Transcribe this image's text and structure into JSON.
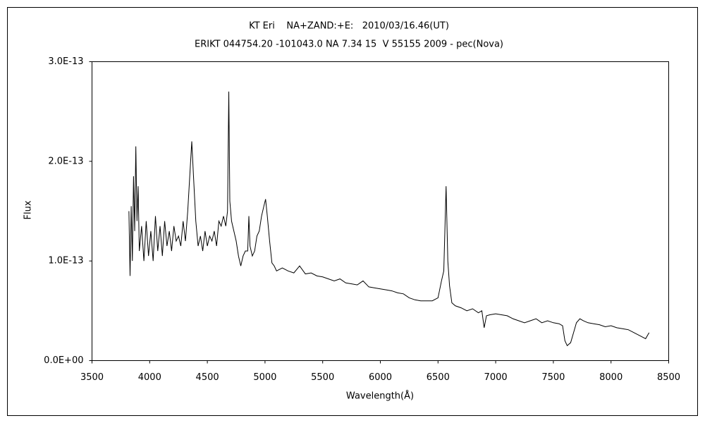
{
  "chart_data": {
    "type": "line",
    "title": "KT Eri    NA+ZAND:+E:   2010/03/16.46(UT)",
    "subtitle": "ERIKT 044754.20 -101043.0 NA 7.34 15  V 55155 2009 - pec(Nova)",
    "x_label": "Wavelength(Å)",
    "y_label": "Flux",
    "xlim": [
      3500,
      8500
    ],
    "xticks": [
      3500,
      4000,
      4500,
      5000,
      5500,
      6000,
      6500,
      7000,
      7500,
      8000,
      8500
    ],
    "ylim": [
      0,
      3e-13
    ],
    "yticks": [
      {
        "value": 0,
        "label": "0.0E+00"
      },
      {
        "value": 1e-13,
        "label": "1.0E-13"
      },
      {
        "value": 2e-13,
        "label": "2.0E-13"
      },
      {
        "value": 3e-13,
        "label": "3.0E-13"
      }
    ],
    "grid": false,
    "x": [
      3820,
      3830,
      3840,
      3850,
      3860,
      3870,
      3880,
      3890,
      3900,
      3910,
      3930,
      3950,
      3970,
      3990,
      4010,
      4030,
      4050,
      4070,
      4090,
      4110,
      4130,
      4150,
      4170,
      4190,
      4210,
      4230,
      4250,
      4270,
      4290,
      4310,
      4330,
      4350,
      4365,
      4380,
      4400,
      4420,
      4440,
      4460,
      4480,
      4500,
      4520,
      4540,
      4560,
      4580,
      4600,
      4620,
      4640,
      4660,
      4675,
      4686,
      4695,
      4710,
      4730,
      4750,
      4770,
      4790,
      4810,
      4830,
      4850,
      4860,
      4870,
      4890,
      4910,
      4930,
      4950,
      4970,
      4990,
      5005,
      5020,
      5040,
      5060,
      5080,
      5100,
      5150,
      5200,
      5250,
      5300,
      5350,
      5400,
      5450,
      5500,
      5550,
      5600,
      5650,
      5700,
      5750,
      5800,
      5850,
      5900,
      5950,
      6000,
      6050,
      6100,
      6150,
      6200,
      6250,
      6300,
      6350,
      6400,
      6450,
      6500,
      6530,
      6550,
      6570,
      6585,
      6600,
      6620,
      6650,
      6700,
      6750,
      6800,
      6850,
      6880,
      6900,
      6920,
      6950,
      7000,
      7050,
      7100,
      7150,
      7200,
      7250,
      7300,
      7350,
      7400,
      7450,
      7500,
      7550,
      7580,
      7600,
      7620,
      7650,
      7680,
      7700,
      7730,
      7760,
      7800,
      7850,
      7900,
      7950,
      8000,
      8050,
      8100,
      8150,
      8200,
      8250,
      8300,
      8330
    ],
    "series": [
      {
        "name": "KT Eri",
        "color": "#000000",
        "values": [
          1.5e-13,
          8.5e-14,
          1.55e-13,
          1e-13,
          1.85e-13,
          1.3e-13,
          2.15e-13,
          1.4e-13,
          1.75e-13,
          1.1e-13,
          1.35e-13,
          1e-13,
          1.4e-13,
          1.05e-13,
          1.3e-13,
          1e-13,
          1.45e-13,
          1.1e-13,
          1.35e-13,
          1.05e-13,
          1.4e-13,
          1.15e-13,
          1.3e-13,
          1.1e-13,
          1.35e-13,
          1.2e-13,
          1.25e-13,
          1.15e-13,
          1.4e-13,
          1.2e-13,
          1.5e-13,
          1.9e-13,
          2.2e-13,
          1.85e-13,
          1.4e-13,
          1.15e-13,
          1.25e-13,
          1.1e-13,
          1.3e-13,
          1.15e-13,
          1.25e-13,
          1.2e-13,
          1.3e-13,
          1.15e-13,
          1.4e-13,
          1.35e-13,
          1.45e-13,
          1.35e-13,
          1.5e-13,
          2.7e-13,
          1.6e-13,
          1.4e-13,
          1.3e-13,
          1.2e-13,
          1.05e-13,
          9.5e-14,
          1.05e-13,
          1.1e-13,
          1.1e-13,
          1.45e-13,
          1.15e-13,
          1.05e-13,
          1.1e-13,
          1.25e-13,
          1.3e-13,
          1.45e-13,
          1.55e-13,
          1.62e-13,
          1.45e-13,
          1.2e-13,
          9.8e-14,
          9.5e-14,
          9e-14,
          9.3e-14,
          9e-14,
          8.8e-14,
          9.5e-14,
          8.7e-14,
          8.8e-14,
          8.5e-14,
          8.4e-14,
          8.2e-14,
          8e-14,
          8.2e-14,
          7.8e-14,
          7.7e-14,
          7.6e-14,
          8e-14,
          7.4e-14,
          7.3e-14,
          7.2e-14,
          7.1e-14,
          7e-14,
          6.8e-14,
          6.7e-14,
          6.3e-14,
          6.1e-14,
          6e-14,
          6e-14,
          6e-14,
          6.3e-14,
          8e-14,
          9e-14,
          1.75e-13,
          1e-13,
          7.5e-14,
          5.8e-14,
          5.5e-14,
          5.3e-14,
          5e-14,
          5.2e-14,
          4.8e-14,
          5e-14,
          3.3e-14,
          4.5e-14,
          4.6e-14,
          4.7e-14,
          4.6e-14,
          4.5e-14,
          4.2e-14,
          4e-14,
          3.8e-14,
          4e-14,
          4.2e-14,
          3.8e-14,
          4e-14,
          3.8e-14,
          3.7e-14,
          3.5e-14,
          2e-14,
          1.5e-14,
          1.8e-14,
          3e-14,
          3.8e-14,
          4.2e-14,
          4e-14,
          3.8e-14,
          3.7e-14,
          3.6e-14,
          3.4e-14,
          3.5e-14,
          3.3e-14,
          3.2e-14,
          3.1e-14,
          2.8e-14,
          2.5e-14,
          2.2e-14,
          2.8e-14
        ]
      }
    ]
  }
}
